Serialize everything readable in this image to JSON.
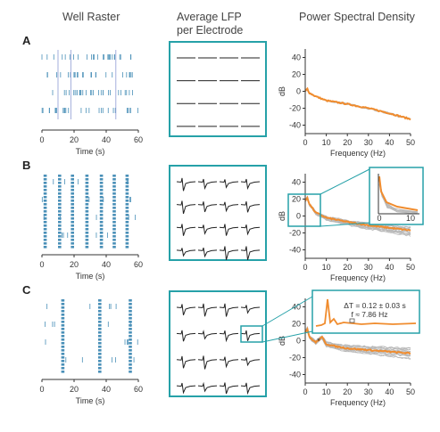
{
  "headers": {
    "raster": "Well Raster",
    "lfp_line1": "Average LFP",
    "lfp_line2": "per Electrode",
    "psd": "Power Spectral Density"
  },
  "rows": [
    {
      "label": "A",
      "raster_bursts": [
        10,
        18,
        46
      ],
      "lfp_style": "flat"
    },
    {
      "label": "B",
      "raster_bursts": [
        2,
        11,
        19,
        28,
        37,
        45,
        53
      ],
      "lfp_style": "spike"
    },
    {
      "label": "C",
      "raster_bursts": [
        13,
        36,
        55
      ],
      "lfp_style": "spike"
    }
  ],
  "raster_axis": {
    "xlabel": "Time (s)",
    "ticks": [
      "0",
      "20",
      "40",
      "60"
    ],
    "xlim": [
      0,
      60
    ]
  },
  "psd_axis": {
    "xlabel": "Frequency (Hz)",
    "ylabel": "dB",
    "xticks": [
      "0",
      "10",
      "20",
      "30",
      "40",
      "50"
    ],
    "yticks": [
      "40",
      "20",
      "0",
      "-20",
      "-40"
    ],
    "xlim": [
      0,
      50
    ],
    "ylim": [
      -50,
      50
    ]
  },
  "inset": {
    "xticks": [
      "0",
      "10"
    ]
  },
  "annotation": {
    "line1": "ΔT = 0.12 ± 0.03 s",
    "line2": "f ≈ 7.86 Hz"
  },
  "colors": {
    "teal": "#26a1a8",
    "orange": "#f08c2e",
    "gray": "#b8b8b8",
    "spike": "#4a90b8"
  },
  "chart_data": [
    {
      "type": "line",
      "panel": "A",
      "xlabel": "Frequency (Hz)",
      "ylabel": "dB",
      "xlim": [
        0,
        50
      ],
      "ylim": [
        -50,
        50
      ],
      "series": [
        {
          "x": [
            0,
            1,
            2,
            5,
            10,
            20,
            30,
            40,
            50
          ],
          "y": [
            0,
            3,
            -2,
            -6,
            -11,
            -15,
            -20,
            -26,
            -33
          ]
        }
      ]
    },
    {
      "type": "line",
      "panel": "B",
      "xlabel": "Frequency (Hz)",
      "ylabel": "dB",
      "xlim": [
        0,
        50
      ],
      "ylim": [
        -50,
        50
      ],
      "series": [
        {
          "x": [
            0,
            1,
            2,
            5,
            10,
            20,
            30,
            40,
            50
          ],
          "y": [
            18,
            22,
            14,
            4,
            -2,
            -7,
            -11,
            -14,
            -17
          ]
        }
      ]
    },
    {
      "type": "line",
      "panel": "C",
      "xlabel": "Frequency (Hz)",
      "ylabel": "dB",
      "xlim": [
        0,
        50
      ],
      "ylim": [
        -50,
        50
      ],
      "series": [
        {
          "x": [
            0,
            1,
            2,
            5,
            8,
            10,
            15,
            20,
            30,
            40,
            50
          ],
          "y": [
            10,
            14,
            4,
            -2,
            4,
            -4,
            -7,
            -9,
            -11,
            -13,
            -15
          ]
        }
      ]
    }
  ]
}
